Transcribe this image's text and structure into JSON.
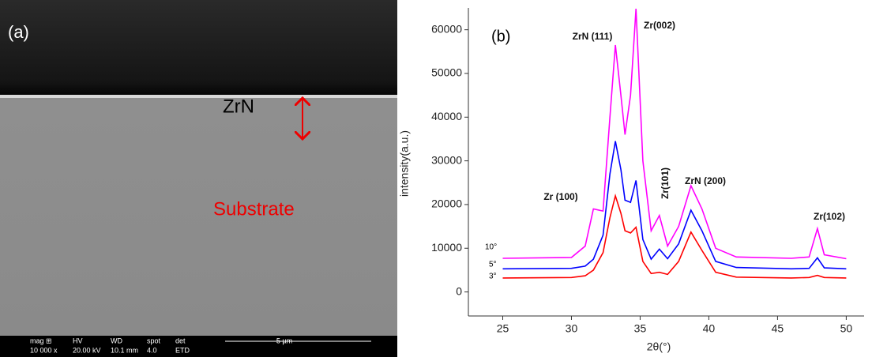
{
  "sem_image": {
    "panel_label": "(a)",
    "labels": [
      "ZrN",
      "Substrate"
    ],
    "info_bar": {
      "headers": [
        "mag ⊞",
        "HV",
        "WD",
        "spot",
        "det"
      ],
      "values": [
        "10 000 x",
        "20.00 kV",
        "10.1 mm",
        "4.0",
        "ETD"
      ],
      "scale": "5 µm"
    }
  },
  "chart_data": {
    "type": "line",
    "panel_label": "(b)",
    "x_label": "2θ(°)",
    "y_label": "intensity(a.u.)",
    "x": [
      25,
      30,
      31,
      31.6,
      32.3,
      32.8,
      33.2,
      33.6,
      33.9,
      34.3,
      34.7,
      35.2,
      35.8,
      36.4,
      37.0,
      37.8,
      38.7,
      39.5,
      40.5,
      42,
      46,
      47.3,
      47.9,
      48.4,
      50
    ],
    "series": [
      {
        "name": "10°",
        "color": "#ff00ff",
        "values": [
          7700,
          7900,
          10500,
          19000,
          18500,
          40000,
          56500,
          45000,
          36000,
          45000,
          64800,
          30000,
          14000,
          17500,
          10500,
          15000,
          24300,
          19000,
          10000,
          8000,
          7700,
          8000,
          14500,
          8500,
          7600
        ]
      },
      {
        "name": "5°",
        "color": "#0000ff",
        "values": [
          5300,
          5400,
          5900,
          7500,
          13000,
          27000,
          34500,
          28000,
          21000,
          20500,
          25500,
          12000,
          7500,
          9800,
          7600,
          11000,
          18700,
          14000,
          7000,
          5600,
          5300,
          5400,
          7800,
          5500,
          5300
        ]
      },
      {
        "name": "3°",
        "color": "#ff0000",
        "values": [
          3200,
          3300,
          3700,
          5000,
          9000,
          17000,
          22000,
          18000,
          14000,
          13500,
          14800,
          7000,
          4200,
          4500,
          4000,
          7000,
          13700,
          9500,
          4500,
          3400,
          3200,
          3300,
          3800,
          3300,
          3200
        ]
      }
    ],
    "annotations": [
      "ZrN (111)",
      "Zr(002)",
      "Zr (100)",
      "Zr(101)",
      "ZrN (200)",
      "Zr(102)"
    ],
    "xlim": [
      22.5,
      51.3
    ],
    "xticks": [
      25,
      30,
      35,
      40,
      45,
      50
    ],
    "ylim": [
      -5500,
      65000
    ],
    "yticks": [
      0,
      10000,
      20000,
      30000,
      40000,
      50000,
      60000
    ]
  }
}
